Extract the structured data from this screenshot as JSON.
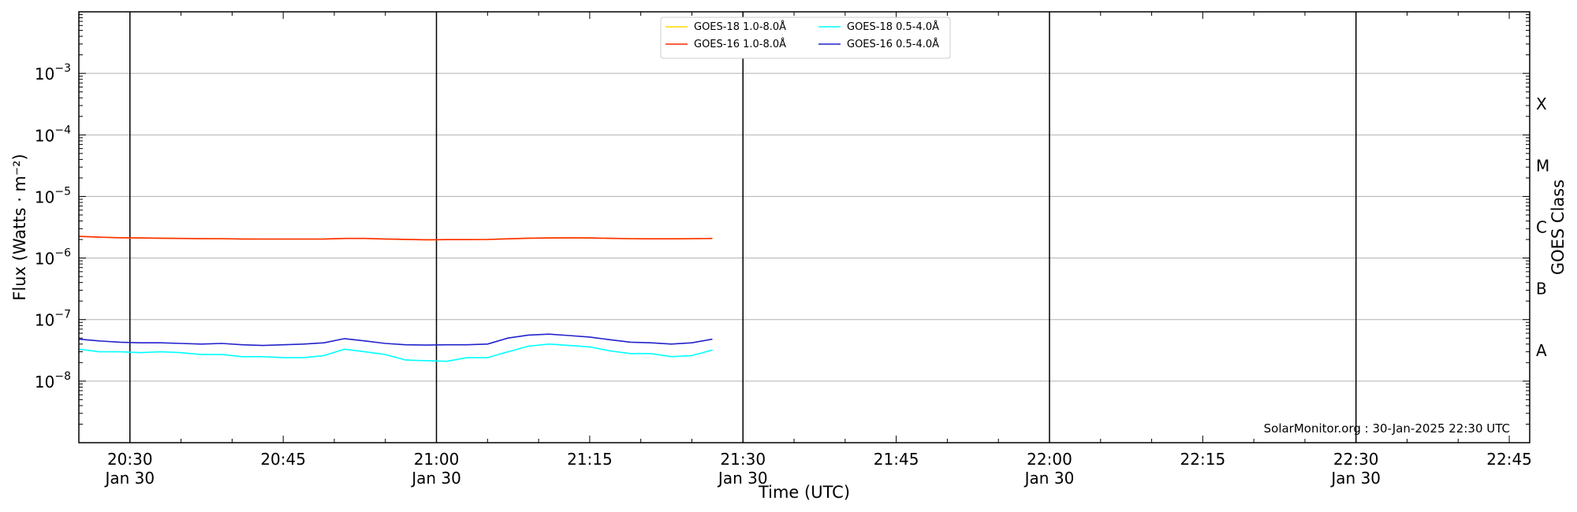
{
  "chart_data": {
    "type": "line",
    "title": "",
    "xlabel": "Time (UTC)",
    "ylabel": "Flux (Watts · m⁻²)",
    "ylabel_right": "GOES Class",
    "yscale": "log",
    "xlim": [
      "20:25",
      "22:47"
    ],
    "ylim": [
      1e-09,
      0.01
    ],
    "grid": "horizontal",
    "vertical_lines": [
      "20:30",
      "21:00",
      "21:30",
      "22:00",
      "22:30"
    ],
    "x_ticks": [
      {
        "time": "20:30",
        "label": "20:30",
        "sublabel": "Jan 30"
      },
      {
        "time": "20:45",
        "label": "20:45",
        "sublabel": ""
      },
      {
        "time": "21:00",
        "label": "21:00",
        "sublabel": "Jan 30"
      },
      {
        "time": "21:15",
        "label": "21:15",
        "sublabel": ""
      },
      {
        "time": "21:30",
        "label": "21:30",
        "sublabel": "Jan 30"
      },
      {
        "time": "21:45",
        "label": "21:45",
        "sublabel": ""
      },
      {
        "time": "22:00",
        "label": "22:00",
        "sublabel": "Jan 30"
      },
      {
        "time": "22:15",
        "label": "22:15",
        "sublabel": ""
      },
      {
        "time": "22:30",
        "label": "22:30",
        "sublabel": "Jan 30"
      },
      {
        "time": "22:45",
        "label": "22:45",
        "sublabel": ""
      }
    ],
    "y_ticks": [
      {
        "value": 1e-08,
        "base": "10",
        "exp": "−8"
      },
      {
        "value": 1e-07,
        "base": "10",
        "exp": "−7"
      },
      {
        "value": 1e-06,
        "base": "10",
        "exp": "−6"
      },
      {
        "value": 1e-05,
        "base": "10",
        "exp": "−5"
      },
      {
        "value": 0.0001,
        "base": "10",
        "exp": "−4"
      },
      {
        "value": 0.001,
        "base": "10",
        "exp": "−3"
      }
    ],
    "goes_classes": [
      {
        "label": "A",
        "value": 3.16e-08
      },
      {
        "label": "B",
        "value": 3.16e-07
      },
      {
        "label": "C",
        "value": 3.16e-06
      },
      {
        "label": "M",
        "value": 3.16e-05
      },
      {
        "label": "X",
        "value": 0.000316
      }
    ],
    "legend": {
      "placement": "top-center",
      "columns": 2,
      "entries": [
        "GOES-18 1.0-8.0Å",
        "GOES-16 1.0-8.0Å",
        "GOES-18 0.5-4.0Å",
        "GOES-16 0.5-4.0Å"
      ]
    },
    "x": [
      "20:25",
      "20:27",
      "20:29",
      "20:31",
      "20:33",
      "20:35",
      "20:37",
      "20:39",
      "20:41",
      "20:43",
      "20:45",
      "20:47",
      "20:49",
      "20:51",
      "20:53",
      "20:55",
      "20:57",
      "20:59",
      "21:01",
      "21:03",
      "21:05",
      "21:07",
      "21:09",
      "21:11",
      "21:13",
      "21:15",
      "21:17",
      "21:19",
      "21:21",
      "21:23",
      "21:25",
      "21:27"
    ],
    "series": [
      {
        "name": "GOES-18 1.0-8.0Å",
        "color": "#ffd700",
        "values": [
          2.25e-06,
          2.18e-06,
          2.14e-06,
          2.12e-06,
          2.1e-06,
          2.08e-06,
          2.07e-06,
          2.06e-06,
          2.04e-06,
          2.03e-06,
          2.03e-06,
          2.03e-06,
          2.04e-06,
          2.08e-06,
          2.08e-06,
          2.04e-06,
          2.01e-06,
          1.98e-06,
          1.99e-06,
          1.99e-06,
          2e-06,
          2.05e-06,
          2.1e-06,
          2.12e-06,
          2.13e-06,
          2.12e-06,
          2.09e-06,
          2.06e-06,
          2.05e-06,
          2.05e-06,
          2.06e-06,
          2.08e-06
        ]
      },
      {
        "name": "GOES-16 1.0-8.0Å",
        "color": "#ff2a00",
        "values": [
          2.25e-06,
          2.18e-06,
          2.14e-06,
          2.12e-06,
          2.1e-06,
          2.08e-06,
          2.07e-06,
          2.06e-06,
          2.04e-06,
          2.03e-06,
          2.03e-06,
          2.03e-06,
          2.04e-06,
          2.08e-06,
          2.08e-06,
          2.04e-06,
          2.01e-06,
          1.98e-06,
          1.99e-06,
          1.99e-06,
          2e-06,
          2.05e-06,
          2.1e-06,
          2.12e-06,
          2.13e-06,
          2.12e-06,
          2.09e-06,
          2.06e-06,
          2.05e-06,
          2.05e-06,
          2.06e-06,
          2.08e-06
        ]
      },
      {
        "name": "GOES-18 0.5-4.0Å",
        "color": "#00ffff",
        "values": [
          3.3e-08,
          3e-08,
          3e-08,
          2.9e-08,
          3e-08,
          2.9e-08,
          2.7e-08,
          2.7e-08,
          2.5e-08,
          2.5e-08,
          2.4e-08,
          2.4e-08,
          2.6e-08,
          3.3e-08,
          3e-08,
          2.7e-08,
          2.2e-08,
          2.15e-08,
          2.1e-08,
          2.4e-08,
          2.4e-08,
          3e-08,
          3.7e-08,
          4e-08,
          3.8e-08,
          3.6e-08,
          3.1e-08,
          2.8e-08,
          2.8e-08,
          2.5e-08,
          2.6e-08,
          3.2e-08
        ]
      },
      {
        "name": "GOES-16 0.5-4.0Å",
        "color": "#2222cc",
        "values": [
          4.8e-08,
          4.5e-08,
          4.3e-08,
          4.2e-08,
          4.2e-08,
          4.1e-08,
          4e-08,
          4.1e-08,
          3.9e-08,
          3.8e-08,
          3.9e-08,
          4e-08,
          4.2e-08,
          4.9e-08,
          4.5e-08,
          4.1e-08,
          3.9e-08,
          3.85e-08,
          3.9e-08,
          3.9e-08,
          4e-08,
          5e-08,
          5.6e-08,
          5.8e-08,
          5.5e-08,
          5.2e-08,
          4.7e-08,
          4.3e-08,
          4.2e-08,
          4e-08,
          4.2e-08,
          4.8e-08
        ]
      }
    ],
    "annotation": "SolarMonitor.org : 30-Jan-2025 22:30 UTC"
  }
}
